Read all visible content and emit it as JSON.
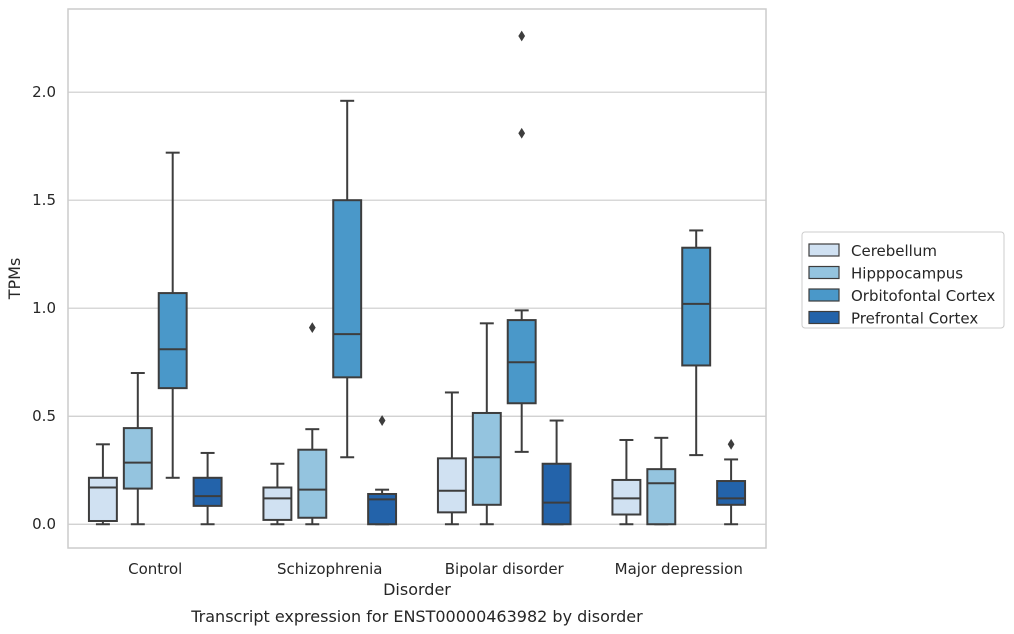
{
  "chart_data": {
    "type": "box",
    "title": "",
    "xlabel": "Disorder",
    "ylabel": "TPMs",
    "caption": "Transcript expression for ENST00000463982 by disorder",
    "categories": [
      "Control",
      "Schizophrenia",
      "Bipolar disorder",
      "Major depression"
    ],
    "ylim": [
      -0.11,
      2.385
    ],
    "yticks": [
      0.0,
      0.5,
      1.0,
      1.5,
      2.0
    ],
    "ytick_labels": [
      "0.0",
      "0.5",
      "1.0",
      "1.5",
      "2.0"
    ],
    "grid": "horizontal",
    "legend_position": "right",
    "series": [
      {
        "name": "Cerebellum",
        "color": "#d0e1f2",
        "boxes": [
          {
            "whislo": 0.0,
            "q1": 0.015,
            "med": 0.17,
            "q3": 0.215,
            "whishi": 0.37,
            "fliers": []
          },
          {
            "whislo": 0.0,
            "q1": 0.02,
            "med": 0.12,
            "q3": 0.17,
            "whishi": 0.28,
            "fliers": []
          },
          {
            "whislo": 0.0,
            "q1": 0.055,
            "med": 0.155,
            "q3": 0.305,
            "whishi": 0.61,
            "fliers": []
          },
          {
            "whislo": 0.0,
            "q1": 0.045,
            "med": 0.12,
            "q3": 0.205,
            "whishi": 0.39,
            "fliers": []
          }
        ]
      },
      {
        "name": "Hipppocampus",
        "color": "#94c4df",
        "boxes": [
          {
            "whislo": 0.0,
            "q1": 0.165,
            "med": 0.285,
            "q3": 0.445,
            "whishi": 0.7,
            "fliers": []
          },
          {
            "whislo": 0.0,
            "q1": 0.03,
            "med": 0.16,
            "q3": 0.345,
            "whishi": 0.44,
            "fliers": [
              0.91
            ]
          },
          {
            "whislo": 0.0,
            "q1": 0.09,
            "med": 0.31,
            "q3": 0.515,
            "whishi": 0.93,
            "fliers": []
          },
          {
            "whislo": 0.0,
            "q1": 0.0,
            "med": 0.19,
            "q3": 0.255,
            "whishi": 0.4,
            "fliers": []
          }
        ]
      },
      {
        "name": "Orbitofontal Cortex",
        "color": "#4a98c9",
        "boxes": [
          {
            "whislo": 0.215,
            "q1": 0.63,
            "med": 0.81,
            "q3": 1.07,
            "whishi": 1.72,
            "fliers": []
          },
          {
            "whislo": 0.31,
            "q1": 0.68,
            "med": 0.88,
            "q3": 1.5,
            "whishi": 1.96,
            "fliers": []
          },
          {
            "whislo": 0.335,
            "q1": 0.56,
            "med": 0.75,
            "q3": 0.945,
            "whishi": 0.99,
            "fliers": [
              1.81,
              2.26
            ]
          },
          {
            "whislo": 0.32,
            "q1": 0.735,
            "med": 1.02,
            "q3": 1.28,
            "whishi": 1.36,
            "fliers": []
          }
        ]
      },
      {
        "name": "Prefrontal Cortex",
        "color": "#2363aa",
        "boxes": [
          {
            "whislo": 0.0,
            "q1": 0.085,
            "med": 0.13,
            "q3": 0.215,
            "whishi": 0.33,
            "fliers": []
          },
          {
            "whislo": 0.0,
            "q1": 0.0,
            "med": 0.115,
            "q3": 0.14,
            "whishi": 0.16,
            "fliers": [
              0.48
            ]
          },
          {
            "whislo": 0.0,
            "q1": 0.0,
            "med": 0.1,
            "q3": 0.28,
            "whishi": 0.48,
            "fliers": []
          },
          {
            "whislo": 0.0,
            "q1": 0.09,
            "med": 0.12,
            "q3": 0.2,
            "whishi": 0.3,
            "fliers": [
              0.37
            ]
          }
        ]
      }
    ]
  }
}
